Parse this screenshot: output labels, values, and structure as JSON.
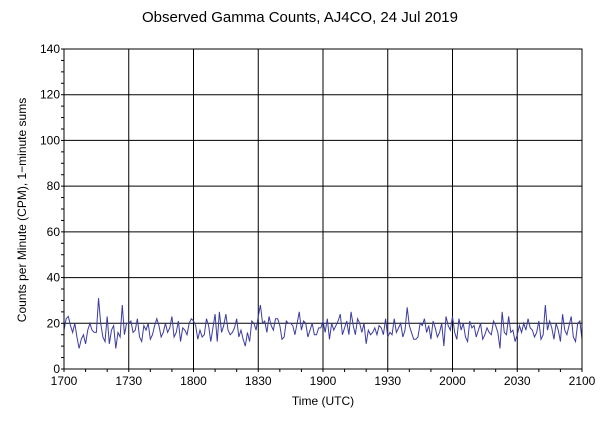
{
  "chart_data": {
    "type": "line",
    "title": "Observed Gamma Counts, AJ4CO, 24 Jul 2019",
    "xlabel": "Time (UTC)",
    "ylabel": "Counts per Minute (CPM), 1−minute sums",
    "xlim": [
      0,
      240
    ],
    "ylim": [
      0,
      140
    ],
    "x_tick_labels": [
      "1700",
      "1730",
      "1800",
      "1830",
      "1900",
      "1930",
      "2000",
      "2030",
      "2100"
    ],
    "y_tick_labels": [
      "0",
      "20",
      "40",
      "60",
      "80",
      "100",
      "120",
      "140"
    ],
    "grid": true,
    "line_color": "#3c3ca0",
    "series": [
      {
        "values": [
          17,
          22,
          23,
          19,
          16,
          20,
          14,
          9,
          13,
          15,
          11,
          17,
          20,
          17,
          16,
          16,
          31,
          20,
          14,
          12,
          23,
          11,
          17,
          19,
          9,
          16,
          14,
          28,
          15,
          20,
          20,
          21,
          16,
          17,
          22,
          14,
          12,
          19,
          17,
          20,
          13,
          15,
          19,
          22,
          19,
          14,
          16,
          20,
          16,
          18,
          23,
          14,
          16,
          21,
          12,
          18,
          17,
          15,
          20,
          22,
          21,
          19,
          13,
          17,
          14,
          15,
          22,
          19,
          12,
          18,
          24,
          12,
          25,
          16,
          19,
          24,
          17,
          15,
          16,
          18,
          22,
          14,
          17,
          13,
          10,
          16,
          12,
          21,
          20,
          17,
          23,
          28,
          20,
          21,
          16,
          23,
          19,
          17,
          22,
          22,
          19,
          13,
          14,
          21,
          20,
          20,
          19,
          15,
          20,
          25,
          17,
          21,
          20,
          14,
          17,
          20,
          15,
          15,
          18,
          18,
          21,
          16,
          22,
          13,
          20,
          17,
          19,
          21,
          24,
          15,
          18,
          21,
          15,
          25,
          19,
          15,
          22,
          20,
          16,
          20,
          11,
          17,
          15,
          16,
          18,
          15,
          19,
          18,
          15,
          22,
          14,
          16,
          15,
          22,
          16,
          18,
          20,
          14,
          17,
          27,
          19,
          16,
          13,
          13,
          14,
          20,
          19,
          22,
          16,
          19,
          13,
          21,
          18,
          14,
          16,
          20,
          10,
          23,
          19,
          17,
          23,
          16,
          13,
          22,
          17,
          20,
          14,
          12,
          21,
          18,
          19,
          14,
          17,
          20,
          13,
          15,
          18,
          16,
          15,
          21,
          19,
          16,
          9,
          25,
          16,
          15,
          23,
          16,
          17,
          12,
          15,
          19,
          16,
          20,
          17,
          22,
          18,
          17,
          14,
          16,
          21,
          13,
          15,
          28,
          17,
          21,
          18,
          13,
          20,
          17,
          12,
          24,
          17,
          15,
          19,
          23,
          14,
          12,
          20,
          21,
          13
        ]
      }
    ]
  }
}
